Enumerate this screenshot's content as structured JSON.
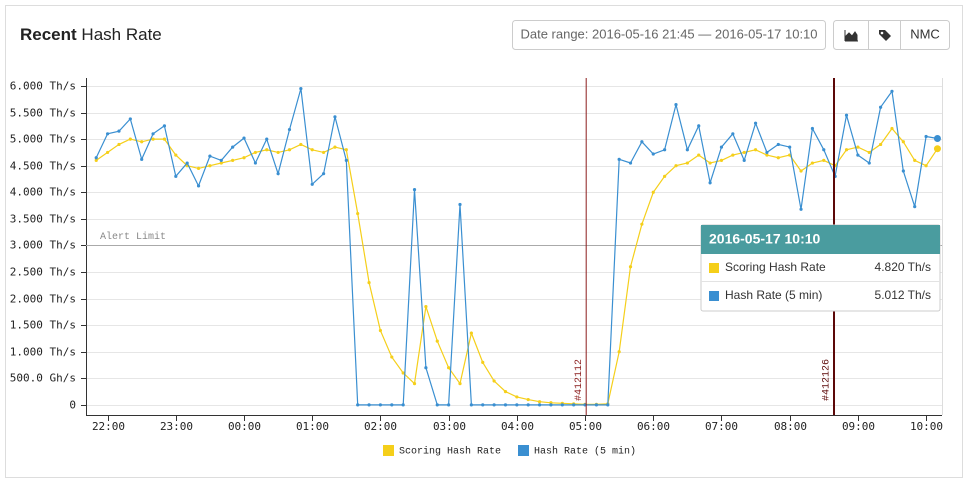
{
  "header": {
    "title_bold": "Recent",
    "title_rest": "Hash Rate",
    "date_range": "Date range: 2016-05-16 21:45 — 2016-05-17 10:10",
    "button": "NMC"
  },
  "chart_data": {
    "type": "line",
    "x": [
      "2016-05-16 21:50",
      "2016-05-16 22:00",
      "2016-05-16 22:10",
      "2016-05-16 22:20",
      "2016-05-16 22:30",
      "2016-05-16 22:40",
      "2016-05-16 22:50",
      "2016-05-16 23:00",
      "2016-05-16 23:10",
      "2016-05-16 23:20",
      "2016-05-16 23:30",
      "2016-05-16 23:40",
      "2016-05-16 23:50",
      "2016-05-17 00:00",
      "2016-05-17 00:10",
      "2016-05-17 00:20",
      "2016-05-17 00:30",
      "2016-05-17 00:40",
      "2016-05-17 00:50",
      "2016-05-17 01:00",
      "2016-05-17 01:10",
      "2016-05-17 01:20",
      "2016-05-17 01:30",
      "2016-05-17 01:40",
      "2016-05-17 01:50",
      "2016-05-17 02:00",
      "2016-05-17 02:10",
      "2016-05-17 02:20",
      "2016-05-17 02:30",
      "2016-05-17 02:40",
      "2016-05-17 02:50",
      "2016-05-17 03:00",
      "2016-05-17 03:10",
      "2016-05-17 03:20",
      "2016-05-17 03:30",
      "2016-05-17 03:40",
      "2016-05-17 03:50",
      "2016-05-17 04:00",
      "2016-05-17 04:10",
      "2016-05-17 04:20",
      "2016-05-17 04:30",
      "2016-05-17 04:40",
      "2016-05-17 04:50",
      "2016-05-17 05:00",
      "2016-05-17 05:10",
      "2016-05-17 05:20",
      "2016-05-17 05:30",
      "2016-05-17 05:40",
      "2016-05-17 05:50",
      "2016-05-17 06:00",
      "2016-05-17 06:10",
      "2016-05-17 06:20",
      "2016-05-17 06:30",
      "2016-05-17 06:40",
      "2016-05-17 06:50",
      "2016-05-17 07:00",
      "2016-05-17 07:10",
      "2016-05-17 07:20",
      "2016-05-17 07:30",
      "2016-05-17 07:40",
      "2016-05-17 07:50",
      "2016-05-17 08:00",
      "2016-05-17 08:10",
      "2016-05-17 08:20",
      "2016-05-17 08:30",
      "2016-05-17 08:40",
      "2016-05-17 08:50",
      "2016-05-17 09:00",
      "2016-05-17 09:10",
      "2016-05-17 09:20",
      "2016-05-17 09:30",
      "2016-05-17 09:40",
      "2016-05-17 09:50",
      "2016-05-17 10:00",
      "2016-05-17 10:10"
    ],
    "series": [
      {
        "name": "Scoring Hash Rate",
        "color": "#f5cf1a",
        "values": [
          4.6,
          4.75,
          4.9,
          5.0,
          4.95,
          5.0,
          5.0,
          4.7,
          4.5,
          4.45,
          4.5,
          4.55,
          4.6,
          4.65,
          4.75,
          4.8,
          4.75,
          4.8,
          4.9,
          4.8,
          4.75,
          4.85,
          4.8,
          3.6,
          2.3,
          1.4,
          0.9,
          0.6,
          0.4,
          1.85,
          1.2,
          0.7,
          0.4,
          1.35,
          0.8,
          0.45,
          0.25,
          0.15,
          0.1,
          0.06,
          0.04,
          0.03,
          0.02,
          0.01,
          0.01,
          0.02,
          1.0,
          2.6,
          3.4,
          4.0,
          4.3,
          4.5,
          4.55,
          4.7,
          4.55,
          4.6,
          4.7,
          4.75,
          4.8,
          4.7,
          4.65,
          4.7,
          4.4,
          4.55,
          4.6,
          4.5,
          4.8,
          4.85,
          4.75,
          4.9,
          5.2,
          4.95,
          4.6,
          4.5,
          4.82
        ]
      },
      {
        "name": "Hash Rate (5 min)",
        "color": "#3a8fd1",
        "values": [
          4.65,
          5.1,
          5.15,
          5.38,
          4.62,
          5.1,
          5.25,
          4.3,
          4.55,
          4.12,
          4.68,
          4.6,
          4.85,
          5.02,
          4.55,
          5.0,
          4.35,
          5.18,
          5.95,
          4.15,
          4.35,
          5.42,
          4.6,
          0,
          0,
          0,
          0,
          0,
          4.05,
          0.7,
          0,
          0,
          3.77,
          0,
          0,
          0,
          0,
          0,
          0,
          0,
          0,
          0,
          0,
          0,
          0,
          0,
          4.62,
          4.55,
          4.95,
          4.72,
          4.8,
          5.65,
          4.8,
          5.25,
          4.18,
          4.85,
          5.1,
          4.6,
          5.3,
          4.75,
          4.9,
          4.85,
          3.68,
          5.2,
          4.8,
          4.3,
          5.45,
          4.7,
          4.55,
          5.6,
          5.9,
          4.4,
          3.73,
          5.05,
          5.012
        ]
      }
    ],
    "xlim": [
      "2016-05-16 21:41",
      "2016-05-17 10:14"
    ],
    "xticks": [
      {
        "value": "2016-05-16 22:00",
        "label": "22:00"
      },
      {
        "value": "2016-05-16 23:00",
        "label": "23:00"
      },
      {
        "value": "2016-05-17 00:00",
        "label": "00:00"
      },
      {
        "value": "2016-05-17 01:00",
        "label": "01:00"
      },
      {
        "value": "2016-05-17 02:00",
        "label": "02:00"
      },
      {
        "value": "2016-05-17 03:00",
        "label": "03:00"
      },
      {
        "value": "2016-05-17 04:00",
        "label": "04:00"
      },
      {
        "value": "2016-05-17 05:00",
        "label": "05:00"
      },
      {
        "value": "2016-05-17 06:00",
        "label": "06:00"
      },
      {
        "value": "2016-05-17 07:00",
        "label": "07:00"
      },
      {
        "value": "2016-05-17 08:00",
        "label": "08:00"
      },
      {
        "value": "2016-05-17 09:00",
        "label": "09:00"
      },
      {
        "value": "2016-05-17 10:00",
        "label": "10:00"
      }
    ],
    "ylim": [
      -0.19,
      6.15
    ],
    "yticks": [
      0,
      {
        "value": 0.5,
        "label": "500.0 Gh/s"
      },
      {
        "value": 1,
        "label": "1.000 Th/s"
      },
      {
        "value": 1.5,
        "label": "1.500 Th/s"
      },
      {
        "value": 2,
        "label": "2.000 Th/s"
      },
      {
        "value": 2.5,
        "label": "2.500 Th/s"
      },
      {
        "value": 3,
        "label": "3.000 Th/s"
      },
      {
        "value": 3.5,
        "label": "3.500 Th/s"
      },
      {
        "value": 4,
        "label": "4.000 Th/s"
      },
      {
        "value": 4.5,
        "label": "4.500 Th/s"
      },
      {
        "value": 5,
        "label": "5.000 Th/s"
      },
      {
        "value": 5.5,
        "label": "5.500 Th/s"
      },
      {
        "value": 6,
        "label": "6.000 Th/s"
      }
    ],
    "grid": true,
    "alert_line": {
      "value": 3,
      "label": "Alert Limit"
    },
    "markers": [
      {
        "x": "2016-05-17 05:01",
        "label": "#412112",
        "color": "#8b1c1c"
      },
      {
        "x": "2016-05-17 08:39",
        "label": "#412126",
        "color": "#5c0808"
      }
    ],
    "tooltip": {
      "values": [
        {
          "value": 4.82,
          "label": "4.820 Th/s"
        },
        {
          "value": 5.012,
          "label": "5.012 Th/s"
        }
      ]
    }
  }
}
